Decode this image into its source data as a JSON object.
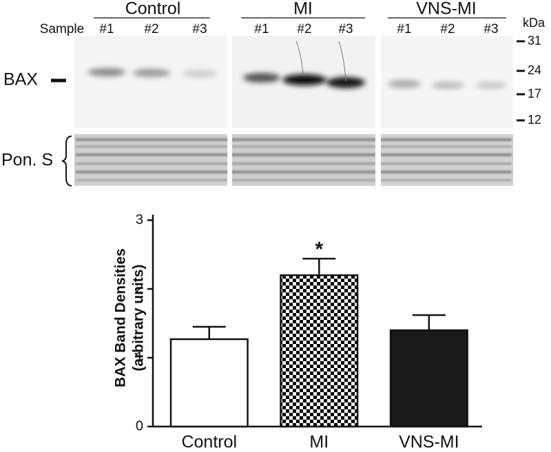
{
  "blot": {
    "groups": [
      {
        "name": "Control",
        "lanes": [
          "#1",
          "#2",
          "#3"
        ]
      },
      {
        "name": "MI",
        "lanes": [
          "#1",
          "#2",
          "#3"
        ]
      },
      {
        "name": "VNS-MI",
        "lanes": [
          "#1",
          "#2",
          "#3"
        ]
      }
    ],
    "sample_label": "Sample",
    "unit": "kDa",
    "markers": [
      "31",
      "24",
      "17",
      "12"
    ],
    "protein": "BAX",
    "loading": "Pon. S"
  },
  "chart_data": {
    "type": "bar",
    "categories": [
      "Control",
      "MI",
      "VNS-MI"
    ],
    "values": [
      1.27,
      2.2,
      1.4
    ],
    "errors": [
      0.18,
      0.24,
      0.22
    ],
    "colors": [
      "#ffffff",
      "#000000",
      "#1a1a1a"
    ],
    "patterns": [
      "solid",
      "checkerboard",
      "solid"
    ],
    "ylabel": [
      "BAX Band Densities",
      "(arbitrary units)"
    ],
    "annotations": [
      {
        "category": 1,
        "text": "*"
      }
    ],
    "ylim": [
      0,
      3
    ],
    "yticks": [
      0,
      1,
      2,
      3
    ]
  }
}
